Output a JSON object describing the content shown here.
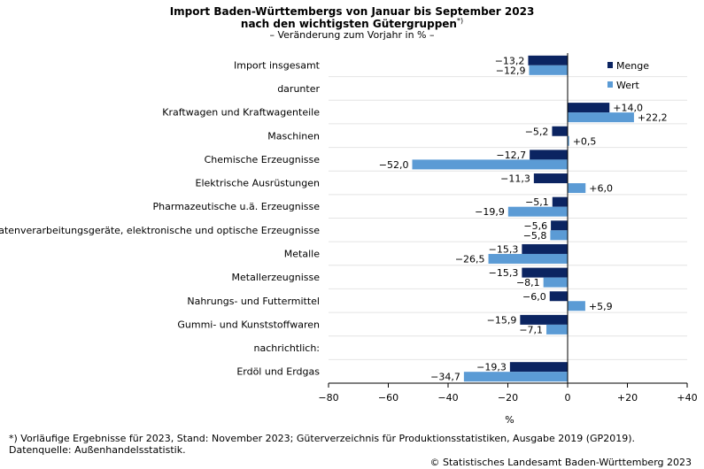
{
  "header": {
    "title_line1": "Import Baden-Württembergs von Januar bis September 2023",
    "title_line2": "nach den wichtigsten Gütergruppen",
    "title_footnote_mark": "*)",
    "subtitle": "– Veränderung zum Vorjahr in % –"
  },
  "chart_data": {
    "type": "bar",
    "orientation": "horizontal",
    "title": "Import Baden-Württembergs von Januar bis September 2023 nach den wichtigsten Gütergruppen",
    "subtitle": "– Veränderung zum Vorjahr in % –",
    "xlabel": "%",
    "ylabel": "",
    "xlim": [
      -80,
      40
    ],
    "xticks": [
      -80,
      -60,
      -40,
      -20,
      0,
      20,
      40
    ],
    "xtick_labels": [
      "−80",
      "−60",
      "−40",
      "−20",
      "0",
      "+20",
      "+40"
    ],
    "legend_position": "top-right",
    "categories": [
      "Import insgesamt",
      "darunter",
      "Kraftwagen und Kraftwagenteile",
      "Maschinen",
      "Chemische Erzeugnisse",
      "Elektrische Ausrüstungen",
      "Pharmazeutische u.ä. Erzeugnisse",
      "Datenverarbeitungsgeräte, elektronische und optische Erzeugnisse",
      "Metalle",
      "Metallerzeugnisse",
      "Nahrungs- und Futtermittel",
      "Gummi- und Kunststoffwaren",
      "nachrichtlich:",
      "Erdöl und Erdgas"
    ],
    "series": [
      {
        "name": "Menge",
        "color": "#0b2461",
        "values": [
          -13.2,
          null,
          14.0,
          -5.2,
          -12.7,
          -11.3,
          -5.1,
          -5.6,
          -15.3,
          -15.3,
          -6.0,
          -15.9,
          null,
          -19.3
        ],
        "labels": [
          "−13,2",
          "",
          "+14,0",
          "−5,2",
          "−12,7",
          "−11,3",
          "−5,1",
          "−5,6",
          "−15,3",
          "−15,3",
          "−6,0",
          "−15,9",
          "",
          "−19,3"
        ]
      },
      {
        "name": "Wert",
        "color": "#5b9bd5",
        "values": [
          -12.9,
          null,
          22.2,
          0.5,
          -52.0,
          6.0,
          -19.9,
          -5.8,
          -26.5,
          -8.1,
          5.9,
          -7.1,
          null,
          -34.7
        ],
        "labels": [
          "−12,9",
          "",
          "+22,2",
          "+0,5",
          "−52,0",
          "+6,0",
          "−19,9",
          "−5,8",
          "−26,5",
          "−8,1",
          "+5,9",
          "−7,1",
          "",
          "−34,7"
        ]
      }
    ]
  },
  "footer": {
    "footnote": "*) Vorläufige Ergebnisse für 2023, Stand: November 2023; Güterverzeichnis für Produktionsstatistiken, Ausgabe 2019 (GP2019).",
    "source": "Datenquelle: Außenhandelsstatistik.",
    "copyright": "© Statistisches Landesamt Baden-Württemberg 2023"
  }
}
